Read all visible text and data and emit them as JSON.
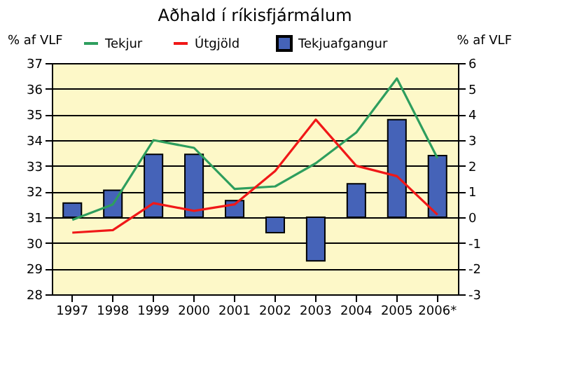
{
  "chart_data": {
    "type": "line",
    "title": "Aðhald í ríkisfjármálum",
    "ylabel": "% af VLF",
    "y2label": "% af VLF",
    "categories": [
      "1997",
      "1998",
      "1999",
      "2000",
      "2001",
      "2002",
      "2003",
      "2004",
      "2005",
      "2006*"
    ],
    "series": [
      {
        "name": "Tekjur",
        "color": "#2e9e5e",
        "values": [
          30.9,
          31.5,
          34.0,
          33.7,
          32.1,
          32.2,
          33.1,
          34.3,
          36.4,
          33.3
        ]
      },
      {
        "name": "Útgjöld",
        "color": "#f01818",
        "values": [
          30.4,
          30.5,
          31.55,
          31.25,
          31.5,
          32.8,
          34.8,
          33.0,
          32.6,
          31.1
        ]
      },
      {
        "name": "Tekjuafgangur",
        "type": "bar",
        "axis": "y2",
        "color": "#4563b8",
        "values": [
          0.55,
          1.05,
          2.45,
          2.45,
          0.65,
          -0.6,
          -1.7,
          1.3,
          3.8,
          2.4
        ]
      }
    ],
    "ylim": [
      28,
      37
    ],
    "yticks": [
      28,
      29,
      30,
      31,
      32,
      33,
      34,
      35,
      36,
      37
    ],
    "y2lim": [
      -3,
      6
    ],
    "y2ticks": [
      -3,
      -2,
      -1,
      0,
      1,
      2,
      3,
      4,
      5,
      6
    ],
    "grid": "y",
    "legend": "top"
  }
}
